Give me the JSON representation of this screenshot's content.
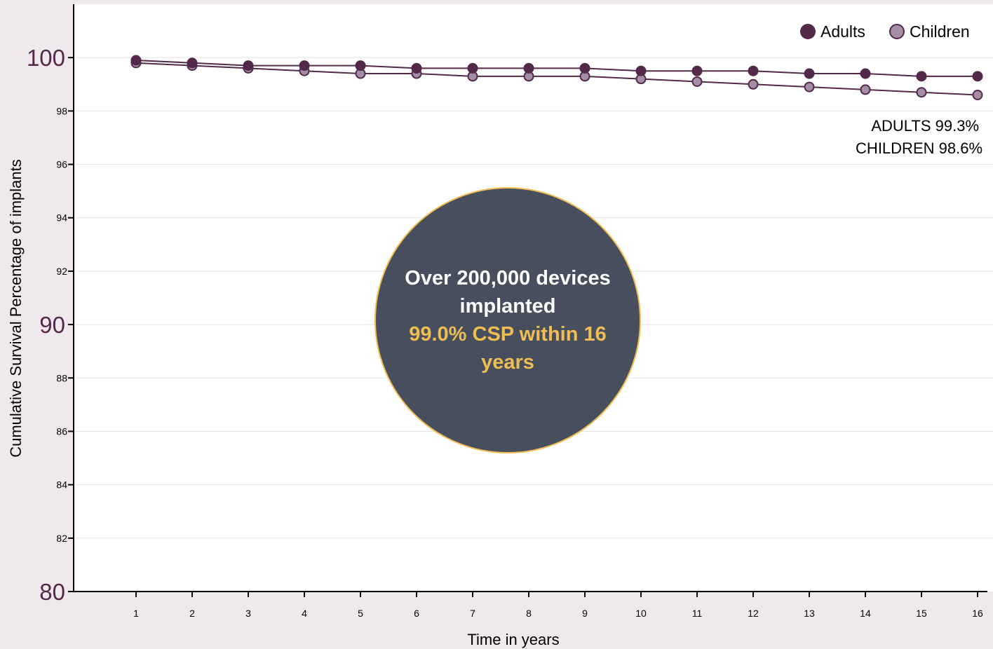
{
  "chart_data": {
    "type": "line",
    "xlabel": "Time in years",
    "ylabel": "Cumulative Survival Percentage of implants",
    "x": [
      1,
      2,
      3,
      4,
      5,
      6,
      7,
      8,
      9,
      10,
      11,
      12,
      13,
      14,
      15,
      16
    ],
    "xlim": [
      0,
      16
    ],
    "ylim": [
      80,
      102
    ],
    "y_ticks_major": [
      80,
      90,
      100
    ],
    "y_ticks_minor": [
      82,
      84,
      86,
      88,
      92,
      94,
      96,
      98
    ],
    "grid": true,
    "legend_position": "top-right",
    "series": [
      {
        "name": "Adults",
        "color": "#53294a",
        "values": [
          99.9,
          99.8,
          99.7,
          99.7,
          99.7,
          99.6,
          99.6,
          99.6,
          99.6,
          99.5,
          99.5,
          99.5,
          99.4,
          99.4,
          99.3,
          99.3
        ]
      },
      {
        "name": "Children",
        "color": "#a48ea3",
        "values": [
          99.8,
          99.7,
          99.6,
          99.5,
          99.4,
          99.4,
          99.3,
          99.3,
          99.3,
          99.2,
          99.1,
          99.0,
          98.9,
          98.8,
          98.7,
          98.6
        ]
      }
    ],
    "end_labels": [
      "ADULTS 99.3%",
      "CHILDREN 98.6%"
    ],
    "callout": {
      "line1": "Over 200,000 devices implanted",
      "line2": "99.0% CSP within 16 years"
    }
  },
  "colors": {
    "axis": "#000000",
    "grid": "#e6e0e5",
    "tick_major_text": "#53294a",
    "callout_bg": "#474e5d",
    "callout_accent": "#f0bd52"
  }
}
